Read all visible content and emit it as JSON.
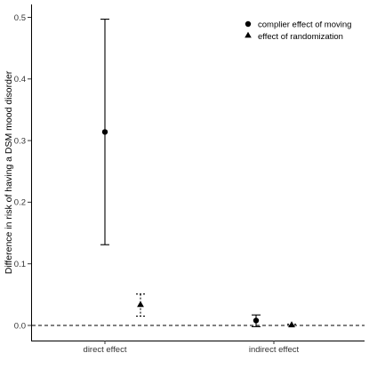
{
  "chart_data": {
    "type": "scatter",
    "subtype": "point-range",
    "title": "",
    "xlabel": "",
    "ylabel": "Difference in risk of having a DSM mood disorder",
    "categories": [
      "direct effect",
      "indirect effect"
    ],
    "ylim": [
      -0.025,
      0.52
    ],
    "y_ticks": [
      "0.0",
      "0.1",
      "0.2",
      "0.3",
      "0.4",
      "0.5"
    ],
    "reference_line": {
      "y": 0,
      "style": "dashed"
    },
    "grid": false,
    "legend": {
      "position": "top-right"
    },
    "series": [
      {
        "name": "complier effect of moving",
        "marker": "circle",
        "errorbar_style": "solid",
        "points": [
          {
            "category": "direct effect",
            "y": 0.314,
            "low": 0.131,
            "high": 0.497
          },
          {
            "category": "indirect effect",
            "y": 0.008,
            "low": -0.002,
            "high": 0.017
          }
        ]
      },
      {
        "name": "effect of randomization",
        "marker": "triangle",
        "errorbar_style": "dotted",
        "points": [
          {
            "category": "direct effect",
            "y": 0.034,
            "low": 0.015,
            "high": 0.051
          },
          {
            "category": "indirect effect",
            "y": 0.001,
            "low": 0.0,
            "high": 0.002
          }
        ]
      }
    ],
    "colors": {
      "ink": "#000000",
      "axis": "#333333"
    }
  }
}
